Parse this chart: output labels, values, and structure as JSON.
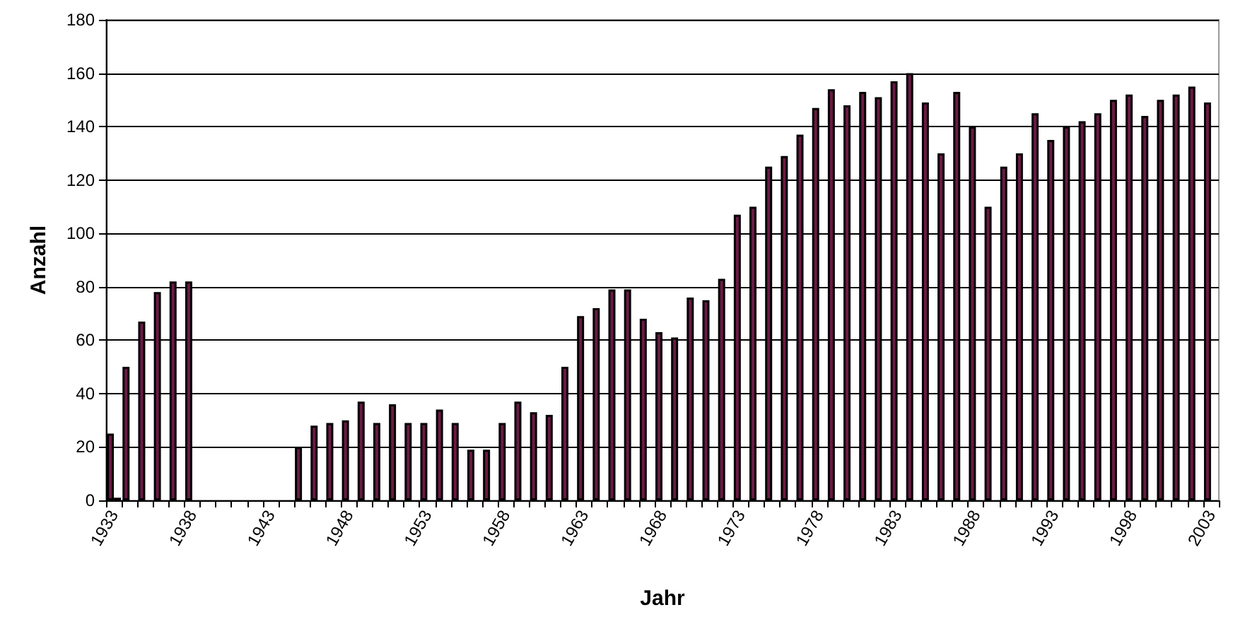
{
  "chart_data": {
    "type": "bar",
    "xlabel": "Jahr",
    "ylabel": "Anzahl",
    "categories": [
      "1933",
      null,
      null,
      null,
      null,
      "1938",
      null,
      null,
      null,
      null,
      "1943",
      null,
      null,
      null,
      null,
      "1948",
      null,
      null,
      null,
      null,
      "1953",
      null,
      null,
      null,
      null,
      "1958",
      null,
      null,
      null,
      null,
      "1963",
      null,
      null,
      null,
      null,
      "1968",
      null,
      null,
      null,
      null,
      "1973",
      null,
      null,
      null,
      null,
      "1978",
      null,
      null,
      null,
      null,
      "1983",
      null,
      null,
      null,
      null,
      "1988",
      null,
      null,
      null,
      null,
      "1993",
      null,
      null,
      null,
      null,
      "1998",
      null,
      null,
      null,
      null,
      "2003"
    ],
    "series": [
      {
        "color": "#6b1a45",
        "values": [
          25,
          50,
          67,
          78,
          82,
          82,
          0,
          0,
          0,
          0,
          0,
          0,
          20,
          28,
          29,
          30,
          37,
          29,
          36,
          29,
          29,
          34,
          29,
          19,
          19,
          29,
          37,
          33,
          32,
          50,
          69,
          72,
          79,
          79,
          68,
          63,
          61,
          76,
          75,
          83,
          107,
          110,
          125,
          129,
          137,
          147,
          154,
          148,
          153,
          151,
          157,
          160,
          149,
          130,
          153,
          140,
          110,
          125,
          130,
          145,
          135,
          140,
          142,
          145,
          150,
          152,
          144,
          150,
          152,
          155,
          149
        ]
      },
      {
        "color": "#000000",
        "values": [
          1,
          null,
          null,
          null,
          null,
          null,
          null,
          null,
          null,
          null,
          null,
          null,
          null,
          null,
          null,
          null,
          null,
          null,
          null,
          null,
          null,
          null,
          null,
          null,
          null,
          null,
          null,
          null,
          null,
          null,
          null,
          null,
          null,
          null,
          null,
          null,
          null,
          null,
          null,
          null,
          null,
          null,
          null,
          null,
          null,
          null,
          null,
          null,
          null,
          null,
          null,
          null,
          null,
          null,
          null,
          null,
          null,
          null,
          null,
          null,
          null,
          null,
          null,
          null,
          null,
          null,
          null,
          null,
          null,
          null,
          null
        ]
      }
    ],
    "ylim": [
      0,
      180
    ],
    "yticks": [
      0,
      20,
      40,
      60,
      80,
      100,
      120,
      140,
      160,
      180
    ],
    "grid": "y"
  }
}
